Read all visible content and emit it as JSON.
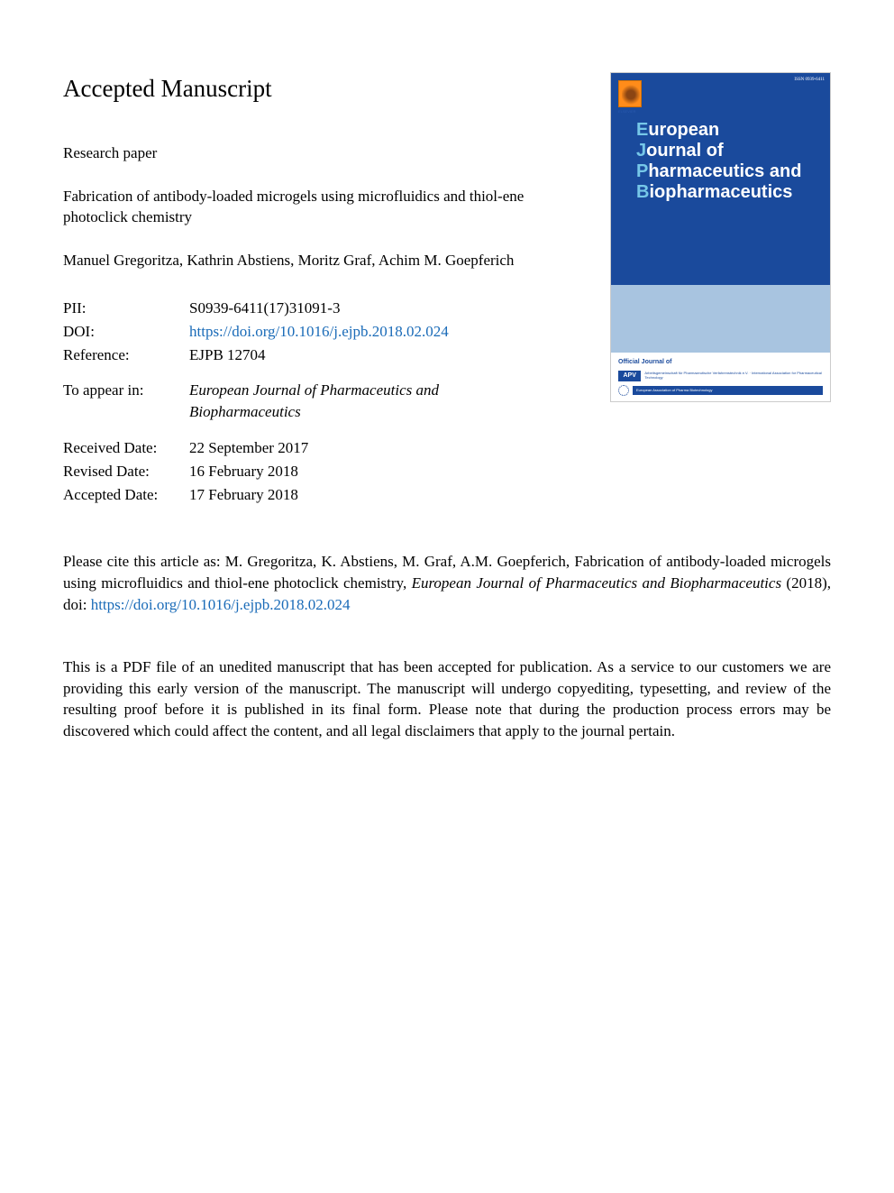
{
  "heading": "Accepted Manuscript",
  "paper_type": "Research paper",
  "title": "Fabrication of antibody-loaded microgels using microfluidics and thiol-ene photoclick chemistry",
  "authors": "Manuel Gregoritza, Kathrin Abstiens, Moritz Graf, Achim M. Goepferich",
  "metadata": {
    "pii_label": "PII:",
    "pii": "S0939-6411(17)31091-3",
    "doi_label": "DOI:",
    "doi_url": "https://doi.org/10.1016/j.ejpb.2018.02.024",
    "reference_label": "Reference:",
    "reference": "EJPB 12704",
    "appear_label": "To appear in:",
    "journal_name": "European Journal of Pharmaceutics and Biopharmaceutics",
    "received_label": "Received Date:",
    "received": "22 September 2017",
    "revised_label": "Revised Date:",
    "revised": "16 February 2018",
    "accepted_label": "Accepted Date:",
    "accepted": "17 February 2018"
  },
  "cover": {
    "issn": "ISSN 0939-6411",
    "elsevier": "ELSEVIER",
    "line1_pre": "E",
    "line1_rest": "uropean",
    "line2_pre": "J",
    "line2_rest": "ournal of",
    "line3_pre": "P",
    "line3_rest": "harmaceutics and",
    "line4_pre": "B",
    "line4_rest": "iopharmaceutics",
    "official": "Official Journal of",
    "apv": "APV",
    "apv_desc": "Arbeitsgemeinschaft für Pharmazeutische Verfahrenstechnik e.V. · International Association for Pharmaceutical Technology",
    "euro_desc": "European Association of Pharma Biotechnology"
  },
  "citation": {
    "prefix": "Please cite this article as: M. Gregoritza, K. Abstiens, M. Graf, A.M. Goepferich, Fabrication of antibody-loaded microgels using microfluidics and thiol-ene photoclick chemistry, ",
    "journal": "European Journal of Pharmaceutics and Biopharmaceutics",
    "year_doi": " (2018), doi: ",
    "doi_url": "https://doi.org/10.1016/j.ejpb.2018.02.024"
  },
  "disclaimer": "This is a PDF file of an unedited manuscript that has been accepted for publication. As a service to our customers we are providing this early version of the manuscript. The manuscript will undergo copyediting, typesetting, and review of the resulting proof before it is published in its final form. Please note that during the production process errors may be discovered which could affect the content, and all legal disclaimers that apply to the journal pertain."
}
